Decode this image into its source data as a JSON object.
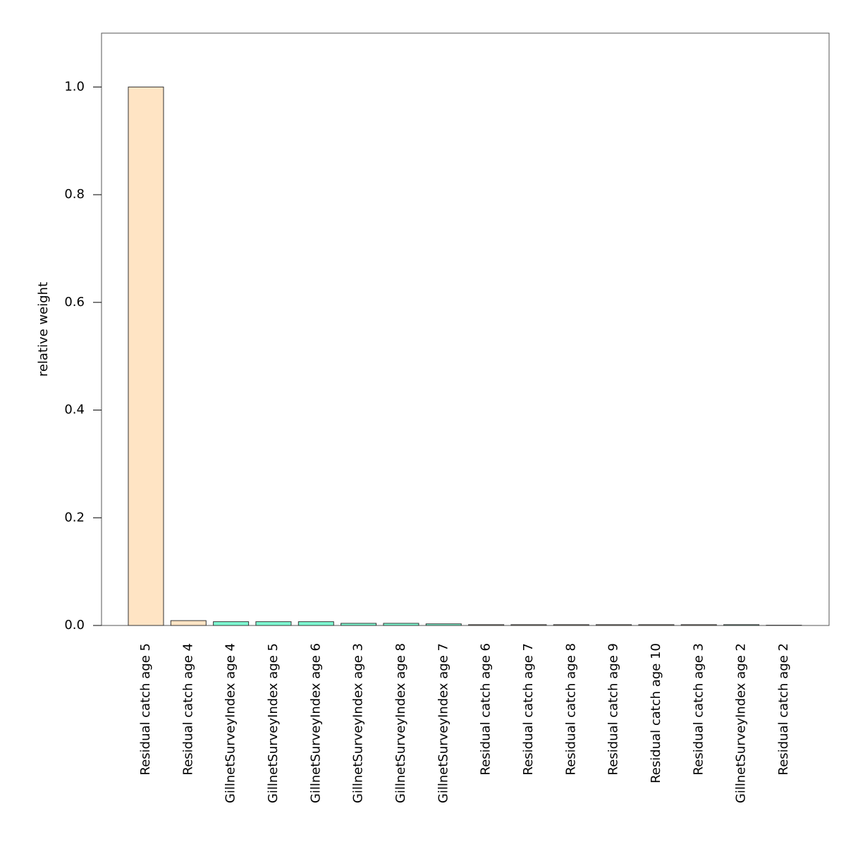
{
  "chart_data": {
    "type": "bar",
    "ylabel": "relative weight",
    "categories": [
      "Residual catch age 5",
      "Residual catch age 4",
      "GillnetSurveyIndex age 4",
      "GillnetSurveyIndex age 5",
      "GillnetSurveyIndex age 6",
      "GillnetSurveyIndex age 3",
      "GillnetSurveyIndex age 8",
      "GillnetSurveyIndex age 7",
      "Residual catch age 6",
      "Residual catch age 7",
      "Residual catch age 8",
      "Residual catch age 9",
      "Residual catch age 10",
      "Residual catch age 3",
      "GillnetSurveyIndex age 2",
      "Residual catch age 2"
    ],
    "values": [
      1.0,
      0.009,
      0.007,
      0.007,
      0.007,
      0.004,
      0.004,
      0.003,
      0.0015,
      0.0015,
      0.0015,
      0.0015,
      0.0015,
      0.0015,
      0.0015,
      0.0005
    ],
    "colors": [
      "#ffe4c4",
      "#ffe4c4",
      "#7fffd4",
      "#7fffd4",
      "#7fffd4",
      "#7fffd4",
      "#7fffd4",
      "#7fffd4",
      "#ffe4c4",
      "#ffe4c4",
      "#ffe4c4",
      "#ffe4c4",
      "#ffe4c4",
      "#ffe4c4",
      "#7fffd4",
      "#ffe4c4"
    ],
    "ylim": [
      0,
      1.1
    ],
    "yticks": [
      {
        "value": 0,
        "label": "0.0"
      },
      0.2,
      0.4,
      0.6,
      0.8,
      {
        "value": 1,
        "label": "1.0"
      }
    ],
    "grid": false
  }
}
